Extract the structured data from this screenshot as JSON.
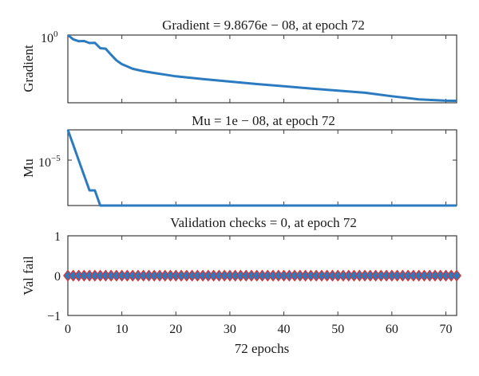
{
  "chart_data": [
    {
      "type": "line",
      "title": "Gradient = 9.8676e − 08, at epoch 72",
      "ylabel": "Gradient",
      "xlabel": "",
      "log_y": true,
      "xlim": [
        0,
        72
      ],
      "ylim": [
        6e-08,
        1.0
      ],
      "ytick_values": [
        1.0
      ],
      "ytick_labels": [
        "10^0"
      ],
      "grid": false,
      "color": "#2c7bc0",
      "series": [
        {
          "x": [
            0,
            1,
            2,
            3,
            4,
            5,
            6,
            7,
            8,
            9,
            10,
            11,
            12,
            14,
            16,
            18,
            20,
            25,
            30,
            35,
            40,
            45,
            50,
            55,
            60,
            65,
            70,
            72
          ],
          "y": [
            1.0,
            0.35,
            0.22,
            0.23,
            0.14,
            0.15,
            0.04,
            0.035,
            0.008,
            0.002,
            0.0008,
            0.00045,
            0.00025,
            0.00014,
            9e-05,
            6e-05,
            4e-05,
            2e-05,
            1.1e-05,
            6e-06,
            3.5e-06,
            2e-06,
            1.2e-06,
            7e-07,
            3e-07,
            1.4e-07,
            1e-07,
            9.8676e-08
          ]
        }
      ]
    },
    {
      "type": "line",
      "title": "Mu = 1e − 08, at epoch 72",
      "ylabel": "Mu",
      "xlabel": "",
      "log_y": true,
      "xlim": [
        0,
        72
      ],
      "ylim": [
        1e-08,
        0.001
      ],
      "ytick_values": [
        1e-05
      ],
      "ytick_labels": [
        "10^-5"
      ],
      "grid": false,
      "color": "#2c7bc0",
      "series": [
        {
          "x": [
            0,
            1,
            2,
            3,
            4,
            5,
            6,
            72
          ],
          "y": [
            0.001,
            0.0001,
            1e-05,
            1e-06,
            1e-07,
            1e-07,
            1e-08,
            1e-08
          ]
        }
      ]
    },
    {
      "type": "scatter",
      "title": "Validation checks = 0, at epoch 72",
      "ylabel": "Val fail",
      "xlabel": "72 epochs",
      "xlim": [
        0,
        72
      ],
      "ylim": [
        -1,
        1
      ],
      "ytick_values": [
        1,
        0,
        -1
      ],
      "ytick_labels": [
        "1",
        "0",
        "−1"
      ],
      "xtick_values": [
        0,
        10,
        20,
        30,
        40,
        50,
        60,
        70
      ],
      "xtick_labels": [
        "0",
        "10",
        "20",
        "30",
        "40",
        "50",
        "60",
        "70"
      ],
      "grid": false,
      "marker_color": "#2c7bc0",
      "marker_edge_color": "#e03030",
      "series": [
        {
          "x": [
            0,
            1,
            2,
            3,
            4,
            5,
            6,
            7,
            8,
            9,
            10,
            11,
            12,
            13,
            14,
            15,
            16,
            17,
            18,
            19,
            20,
            21,
            22,
            23,
            24,
            25,
            26,
            27,
            28,
            29,
            30,
            31,
            32,
            33,
            34,
            35,
            36,
            37,
            38,
            39,
            40,
            41,
            42,
            43,
            44,
            45,
            46,
            47,
            48,
            49,
            50,
            51,
            52,
            53,
            54,
            55,
            56,
            57,
            58,
            59,
            60,
            61,
            62,
            63,
            64,
            65,
            66,
            67,
            68,
            69,
            70,
            71,
            72
          ],
          "y": [
            0,
            0,
            0,
            0,
            0,
            0,
            0,
            0,
            0,
            0,
            0,
            0,
            0,
            0,
            0,
            0,
            0,
            0,
            0,
            0,
            0,
            0,
            0,
            0,
            0,
            0,
            0,
            0,
            0,
            0,
            0,
            0,
            0,
            0,
            0,
            0,
            0,
            0,
            0,
            0,
            0,
            0,
            0,
            0,
            0,
            0,
            0,
            0,
            0,
            0,
            0,
            0,
            0,
            0,
            0,
            0,
            0,
            0,
            0,
            0,
            0,
            0,
            0,
            0,
            0,
            0,
            0,
            0,
            0,
            0,
            0,
            0,
            0
          ]
        }
      ]
    }
  ]
}
